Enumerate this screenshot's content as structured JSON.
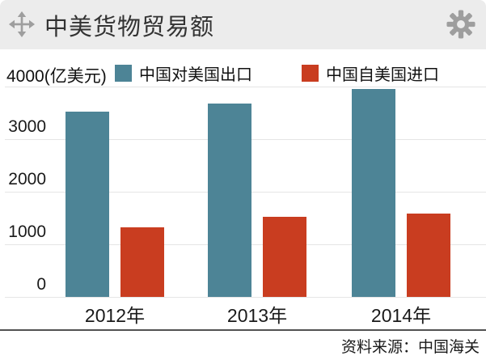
{
  "header": {
    "title": "中美货物贸易额"
  },
  "legend": {
    "axis_top_label": "4000(亿美元)"
  },
  "chart_data": {
    "type": "bar",
    "title": "中美货物贸易额",
    "categories": [
      "2012年",
      "2013年",
      "2014年"
    ],
    "series": [
      {
        "name": "中国对美国出口",
        "color": "#4d8496",
        "values": [
          3518,
          3684,
          3961
        ]
      },
      {
        "name": "中国自美国进口",
        "color": "#c93d20",
        "values": [
          1329,
          1526,
          1590
        ]
      }
    ],
    "ylabel": "亿美元",
    "ylim": [
      0,
      4000
    ],
    "yticks": [
      0,
      1000,
      2000,
      3000,
      4000
    ],
    "visible_ytick_labels": [
      "3000",
      "2000",
      "1000",
      "0"
    ],
    "grid": true,
    "legend_position": "top"
  },
  "colors": {
    "header_bg": "#ececec",
    "icon_gray": "#9e9e9e",
    "gridline": "#e5e5e5",
    "divider": "#525252"
  },
  "footer": {
    "source": "资料来源：中国海关"
  }
}
